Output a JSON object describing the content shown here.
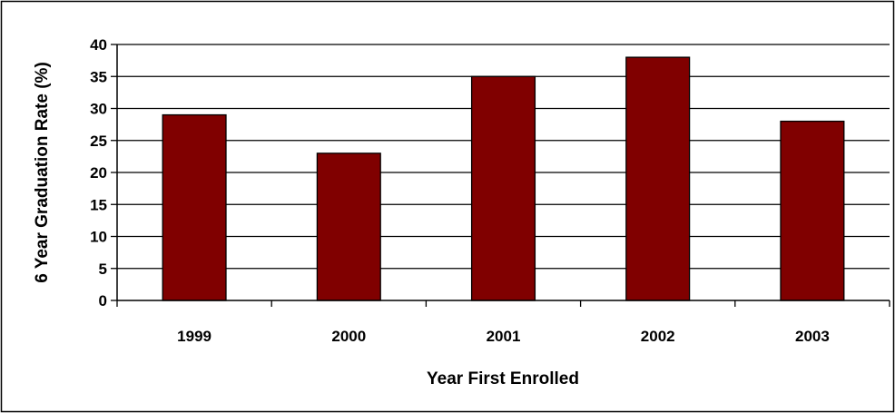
{
  "chart_data": {
    "type": "bar",
    "categories": [
      "1999",
      "2000",
      "2001",
      "2002",
      "2003"
    ],
    "values": [
      29,
      23,
      35,
      38,
      28
    ],
    "title": "",
    "xlabel": "Year First Enrolled",
    "ylabel": "6 Year Graduation Rate (%)",
    "ylim": [
      0,
      40
    ],
    "yticks": [
      "0",
      "5",
      "10",
      "15",
      "20",
      "25",
      "30",
      "35",
      "40"
    ],
    "grid": true,
    "legend": "none",
    "bar_color": "#800000"
  }
}
